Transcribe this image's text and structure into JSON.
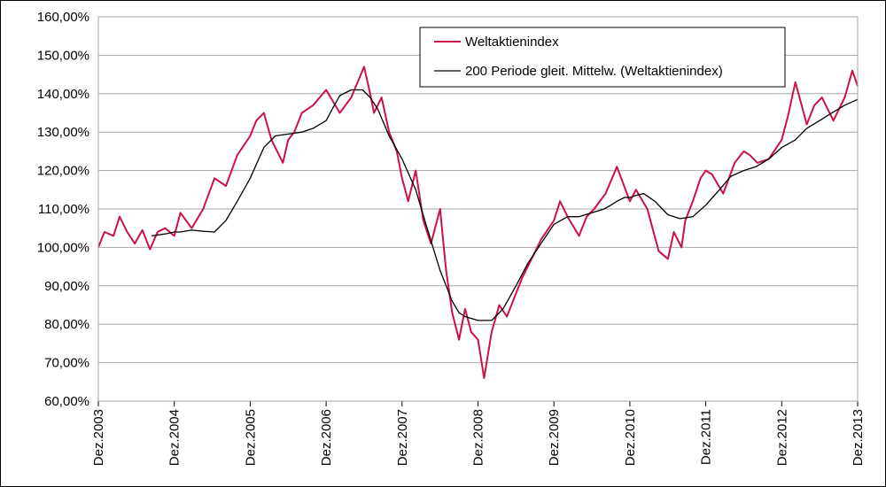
{
  "chart_data": {
    "type": "line",
    "title": "",
    "xlabel": "",
    "ylabel": "",
    "ylim": [
      60,
      160
    ],
    "y_ticks": [
      "60,00%",
      "70,00%",
      "80,00%",
      "90,00%",
      "100,00%",
      "110,00%",
      "120,00%",
      "130,00%",
      "140,00%",
      "150,00%",
      "160,00%"
    ],
    "x_ticks": [
      "Dez.2003",
      "Dez.2004",
      "Dez.2005",
      "Dez.2006",
      "Dez.2007",
      "Dez.2008",
      "Dez.2009",
      "Dez.2010",
      "Dez.2011",
      "Dez.2012",
      "Dez.2013"
    ],
    "grid": "horizontal",
    "legend_position": "top-right",
    "colors": {
      "index": "#cc1144",
      "moving_average": "#000000",
      "grid": "#a6a6a6"
    },
    "series": [
      {
        "name": "Weltaktienindex",
        "x": [
          2003.92,
          2004.0,
          2004.12,
          2004.2,
          2004.3,
          2004.4,
          2004.5,
          2004.6,
          2004.7,
          2004.8,
          2004.92,
          2005.0,
          2005.15,
          2005.3,
          2005.45,
          2005.6,
          2005.75,
          2005.92,
          2006.0,
          2006.1,
          2006.2,
          2006.35,
          2006.42,
          2006.5,
          2006.6,
          2006.75,
          2006.92,
          2007.1,
          2007.25,
          2007.42,
          2007.5,
          2007.55,
          2007.65,
          2007.75,
          2007.85,
          2007.92,
          2008.0,
          2008.1,
          2008.2,
          2008.3,
          2008.42,
          2008.5,
          2008.58,
          2008.67,
          2008.75,
          2008.83,
          2008.92,
          2009.0,
          2009.1,
          2009.2,
          2009.3,
          2009.42,
          2009.5,
          2009.6,
          2009.75,
          2009.92,
          2010.0,
          2010.1,
          2010.25,
          2010.35,
          2010.45,
          2010.6,
          2010.75,
          2010.92,
          2011.0,
          2011.15,
          2011.3,
          2011.42,
          2011.5,
          2011.6,
          2011.65,
          2011.75,
          2011.85,
          2011.92,
          2012.0,
          2012.15,
          2012.3,
          2012.42,
          2012.5,
          2012.6,
          2012.75,
          2012.92,
          2013.0,
          2013.1,
          2013.25,
          2013.35,
          2013.45,
          2013.6,
          2013.75,
          2013.85,
          2013.92
        ],
        "values": [
          100.0,
          104.0,
          103.0,
          108.0,
          104.0,
          101.0,
          104.5,
          99.5,
          104.0,
          105.0,
          103.0,
          109.0,
          105.0,
          110.0,
          118.0,
          116.0,
          124.0,
          129.0,
          133.0,
          135.0,
          128.0,
          122.0,
          128.0,
          130.0,
          135.0,
          137.0,
          141.0,
          135.0,
          139.0,
          147.0,
          140.0,
          135.0,
          139.0,
          130.0,
          125.0,
          118.0,
          112.0,
          120.0,
          107.0,
          101.0,
          110.0,
          94.0,
          83.0,
          76.0,
          84.0,
          78.0,
          76.0,
          66.0,
          78.0,
          85.0,
          82.0,
          88.0,
          92.0,
          96.0,
          102.0,
          107.0,
          112.0,
          108.0,
          103.0,
          108.0,
          110.0,
          114.0,
          121.0,
          112.0,
          115.0,
          110.0,
          99.0,
          97.0,
          104.0,
          100.0,
          107.0,
          112.0,
          118.0,
          120.0,
          119.0,
          114.0,
          122.0,
          125.0,
          124.0,
          122.0,
          123.0,
          128.0,
          134.0,
          143.0,
          132.0,
          137.0,
          139.0,
          133.0,
          139.0,
          146.0,
          142.0
        ]
      },
      {
        "name": "200 Periode gleit. Mittelw. (Weltaktienindex)",
        "x": [
          2004.62,
          2004.8,
          2004.92,
          2005.0,
          2005.15,
          2005.3,
          2005.45,
          2005.6,
          2005.75,
          2005.92,
          2006.1,
          2006.25,
          2006.42,
          2006.6,
          2006.75,
          2006.92,
          2007.0,
          2007.1,
          2007.25,
          2007.4,
          2007.5,
          2007.6,
          2007.75,
          2007.92,
          2008.1,
          2008.25,
          2008.42,
          2008.58,
          2008.67,
          2008.75,
          2008.92,
          2009.1,
          2009.25,
          2009.42,
          2009.58,
          2009.75,
          2009.92,
          2010.1,
          2010.25,
          2010.42,
          2010.58,
          2010.67,
          2010.75,
          2010.85,
          2010.92,
          2011.0,
          2011.1,
          2011.25,
          2011.42,
          2011.58,
          2011.75,
          2011.92,
          2012.1,
          2012.25,
          2012.42,
          2012.58,
          2012.75,
          2012.92,
          2013.1,
          2013.25,
          2013.42,
          2013.58,
          2013.75,
          2013.92
        ],
        "values": [
          103.0,
          103.5,
          104.0,
          104.0,
          104.5,
          104.2,
          104.0,
          107.0,
          112.0,
          118.0,
          126.0,
          129.0,
          129.5,
          130.0,
          131.0,
          133.0,
          136.0,
          139.5,
          141.0,
          141.0,
          139.0,
          136.0,
          129.0,
          123.0,
          115.0,
          105.0,
          94.0,
          86.0,
          83.0,
          82.0,
          81.0,
          81.0,
          84.0,
          90.0,
          96.0,
          101.0,
          106.0,
          108.0,
          108.0,
          109.0,
          110.0,
          111.0,
          112.0,
          113.0,
          113.0,
          113.5,
          114.0,
          112.0,
          108.5,
          107.5,
          108.0,
          111.0,
          115.0,
          118.5,
          120.0,
          121.0,
          123.0,
          126.0,
          128.0,
          131.0,
          133.0,
          135.0,
          137.0,
          138.5
        ]
      }
    ]
  }
}
